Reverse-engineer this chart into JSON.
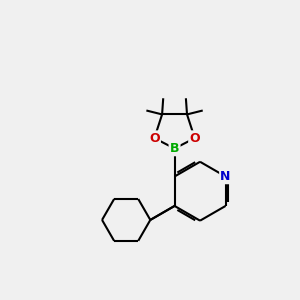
{
  "bg_color": "#f0f0f0",
  "bond_color": "#000000",
  "N_color": "#0000cc",
  "O_color": "#cc0000",
  "B_color": "#00aa00",
  "linewidth": 1.5,
  "figsize": [
    3.0,
    3.0
  ],
  "dpi": 100,
  "xlim": [
    0,
    10
  ],
  "ylim": [
    0,
    10
  ]
}
